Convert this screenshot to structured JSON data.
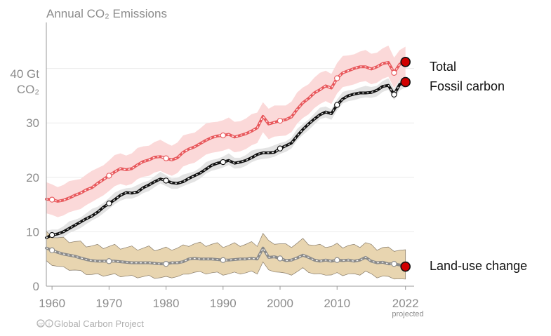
{
  "chart_data": {
    "type": "line",
    "title": "Annual CO₂ Emissions",
    "ylabel_line1": "40 Gt",
    "ylabel_line2": "CO₂",
    "xlim": [
      1959,
      2022
    ],
    "ylim": [
      0,
      50
    ],
    "yticks": [
      0,
      10,
      20,
      30
    ],
    "xticks": [
      "1960",
      "1970",
      "1980",
      "1990",
      "2000",
      "2010",
      "2022"
    ],
    "xtick_values": [
      1960,
      1970,
      1980,
      1990,
      2000,
      2010,
      2022
    ],
    "projected_label": "projected",
    "credit": "Global Carbon Project",
    "grid": true,
    "colors": {
      "total": "#e8585c",
      "total_band": "#fbd9d9",
      "fossil": "#111111",
      "fossil_band": "#e3e3e3",
      "landuse": "#8a8a8a",
      "landuse_band": "#e8d5b0",
      "projection_marker": "#d10000",
      "axis_text": "#8c8c8c"
    },
    "series": [
      {
        "name": "Total",
        "x": [
          1959,
          1960,
          1961,
          1962,
          1963,
          1964,
          1965,
          1966,
          1967,
          1968,
          1969,
          1970,
          1971,
          1972,
          1973,
          1974,
          1975,
          1976,
          1977,
          1978,
          1979,
          1980,
          1981,
          1982,
          1983,
          1984,
          1985,
          1986,
          1987,
          1988,
          1989,
          1990,
          1991,
          1992,
          1993,
          1994,
          1995,
          1996,
          1997,
          1998,
          1999,
          2000,
          2001,
          2002,
          2003,
          2004,
          2005,
          2006,
          2007,
          2008,
          2009,
          2010,
          2011,
          2012,
          2013,
          2014,
          2015,
          2016,
          2017,
          2018,
          2019,
          2020,
          2021
        ],
        "values": [
          16.0,
          15.9,
          15.6,
          15.8,
          16.2,
          16.7,
          17.1,
          17.7,
          18.1,
          18.9,
          19.6,
          20.3,
          21.0,
          21.6,
          21.4,
          21.6,
          22.3,
          22.9,
          23.2,
          23.7,
          23.8,
          23.5,
          23.2,
          23.6,
          24.6,
          25.2,
          25.6,
          26.2,
          26.8,
          27.3,
          27.6,
          27.7,
          27.9,
          27.4,
          27.7,
          28.0,
          28.5,
          29.1,
          31.2,
          29.8,
          30.1,
          30.4,
          30.6,
          31.1,
          32.5,
          33.7,
          34.5,
          35.5,
          36.1,
          36.8,
          36.4,
          38.2,
          39.2,
          39.6,
          40.0,
          40.3,
          40.3,
          39.9,
          40.3,
          40.9,
          41.1,
          39.2,
          40.8
        ]
      },
      {
        "name": "Fossil carbon",
        "x": [
          1959,
          1960,
          1961,
          1962,
          1963,
          1964,
          1965,
          1966,
          1967,
          1968,
          1969,
          1970,
          1971,
          1972,
          1973,
          1974,
          1975,
          1976,
          1977,
          1978,
          1979,
          1980,
          1981,
          1982,
          1983,
          1984,
          1985,
          1986,
          1987,
          1988,
          1989,
          1990,
          1991,
          1992,
          1993,
          1994,
          1995,
          1996,
          1997,
          1998,
          1999,
          2000,
          2001,
          2002,
          2003,
          2004,
          2005,
          2006,
          2007,
          2008,
          2009,
          2010,
          2011,
          2012,
          2013,
          2014,
          2015,
          2016,
          2017,
          2018,
          2019,
          2020,
          2021
        ],
        "values": [
          8.9,
          9.4,
          9.6,
          10.0,
          10.6,
          11.2,
          11.8,
          12.4,
          12.9,
          13.6,
          14.5,
          15.2,
          15.9,
          16.7,
          17.2,
          17.1,
          17.3,
          18.1,
          18.6,
          19.2,
          19.7,
          19.4,
          19.0,
          18.9,
          19.2,
          19.8,
          20.3,
          20.8,
          21.5,
          22.2,
          22.6,
          22.8,
          23.1,
          22.6,
          22.8,
          23.1,
          23.6,
          24.2,
          24.5,
          24.5,
          24.6,
          25.3,
          25.8,
          26.3,
          27.6,
          28.8,
          29.8,
          30.7,
          31.5,
          32.0,
          31.7,
          33.3,
          34.4,
          35.0,
          35.3,
          35.5,
          35.5,
          35.6,
          36.0,
          36.7,
          36.9,
          35.2,
          37.1
        ]
      },
      {
        "name": "Land-use change",
        "x": [
          1959,
          1960,
          1961,
          1962,
          1963,
          1964,
          1965,
          1966,
          1967,
          1968,
          1969,
          1970,
          1971,
          1972,
          1973,
          1974,
          1975,
          1976,
          1977,
          1978,
          1979,
          1980,
          1981,
          1982,
          1983,
          1984,
          1985,
          1986,
          1987,
          1988,
          1989,
          1990,
          1991,
          1992,
          1993,
          1994,
          1995,
          1996,
          1997,
          1998,
          1999,
          2000,
          2001,
          2002,
          2003,
          2004,
          2005,
          2006,
          2007,
          2008,
          2009,
          2010,
          2011,
          2012,
          2013,
          2014,
          2015,
          2016,
          2017,
          2018,
          2019,
          2020,
          2021
        ],
        "values": [
          7.0,
          6.6,
          6.2,
          5.9,
          5.7,
          5.5,
          5.2,
          4.9,
          4.7,
          4.6,
          4.6,
          4.6,
          4.6,
          4.5,
          4.4,
          4.3,
          4.3,
          4.3,
          4.3,
          4.2,
          4.1,
          4.1,
          4.3,
          4.3,
          4.5,
          5.0,
          5.1,
          5.0,
          5.0,
          5.0,
          4.9,
          4.8,
          4.8,
          4.9,
          5.0,
          5.0,
          5.1,
          5.0,
          7.0,
          5.3,
          5.4,
          5.1,
          4.7,
          4.8,
          5.2,
          5.7,
          5.3,
          4.8,
          4.6,
          4.8,
          4.6,
          4.8,
          4.7,
          4.8,
          4.6,
          4.8,
          5.3,
          4.6,
          4.3,
          4.4,
          4.1,
          4.1,
          3.9
        ]
      }
    ],
    "uncertainty": {
      "Total": 2.8,
      "Fossil carbon": 1.0,
      "Land-use change": 2.6
    },
    "projection_2022": [
      {
        "name": "Total",
        "value": 41.2
      },
      {
        "name": "Fossil carbon",
        "value": 37.5
      },
      {
        "name": "Land-use change",
        "value": 3.6
      }
    ],
    "open_markers_years": [
      1960,
      1970,
      1980,
      1990,
      2000,
      2010,
      2020
    ],
    "legend_labels": {
      "total": "Total",
      "fossil": "Fossil carbon",
      "landuse": "Land-use change"
    }
  }
}
